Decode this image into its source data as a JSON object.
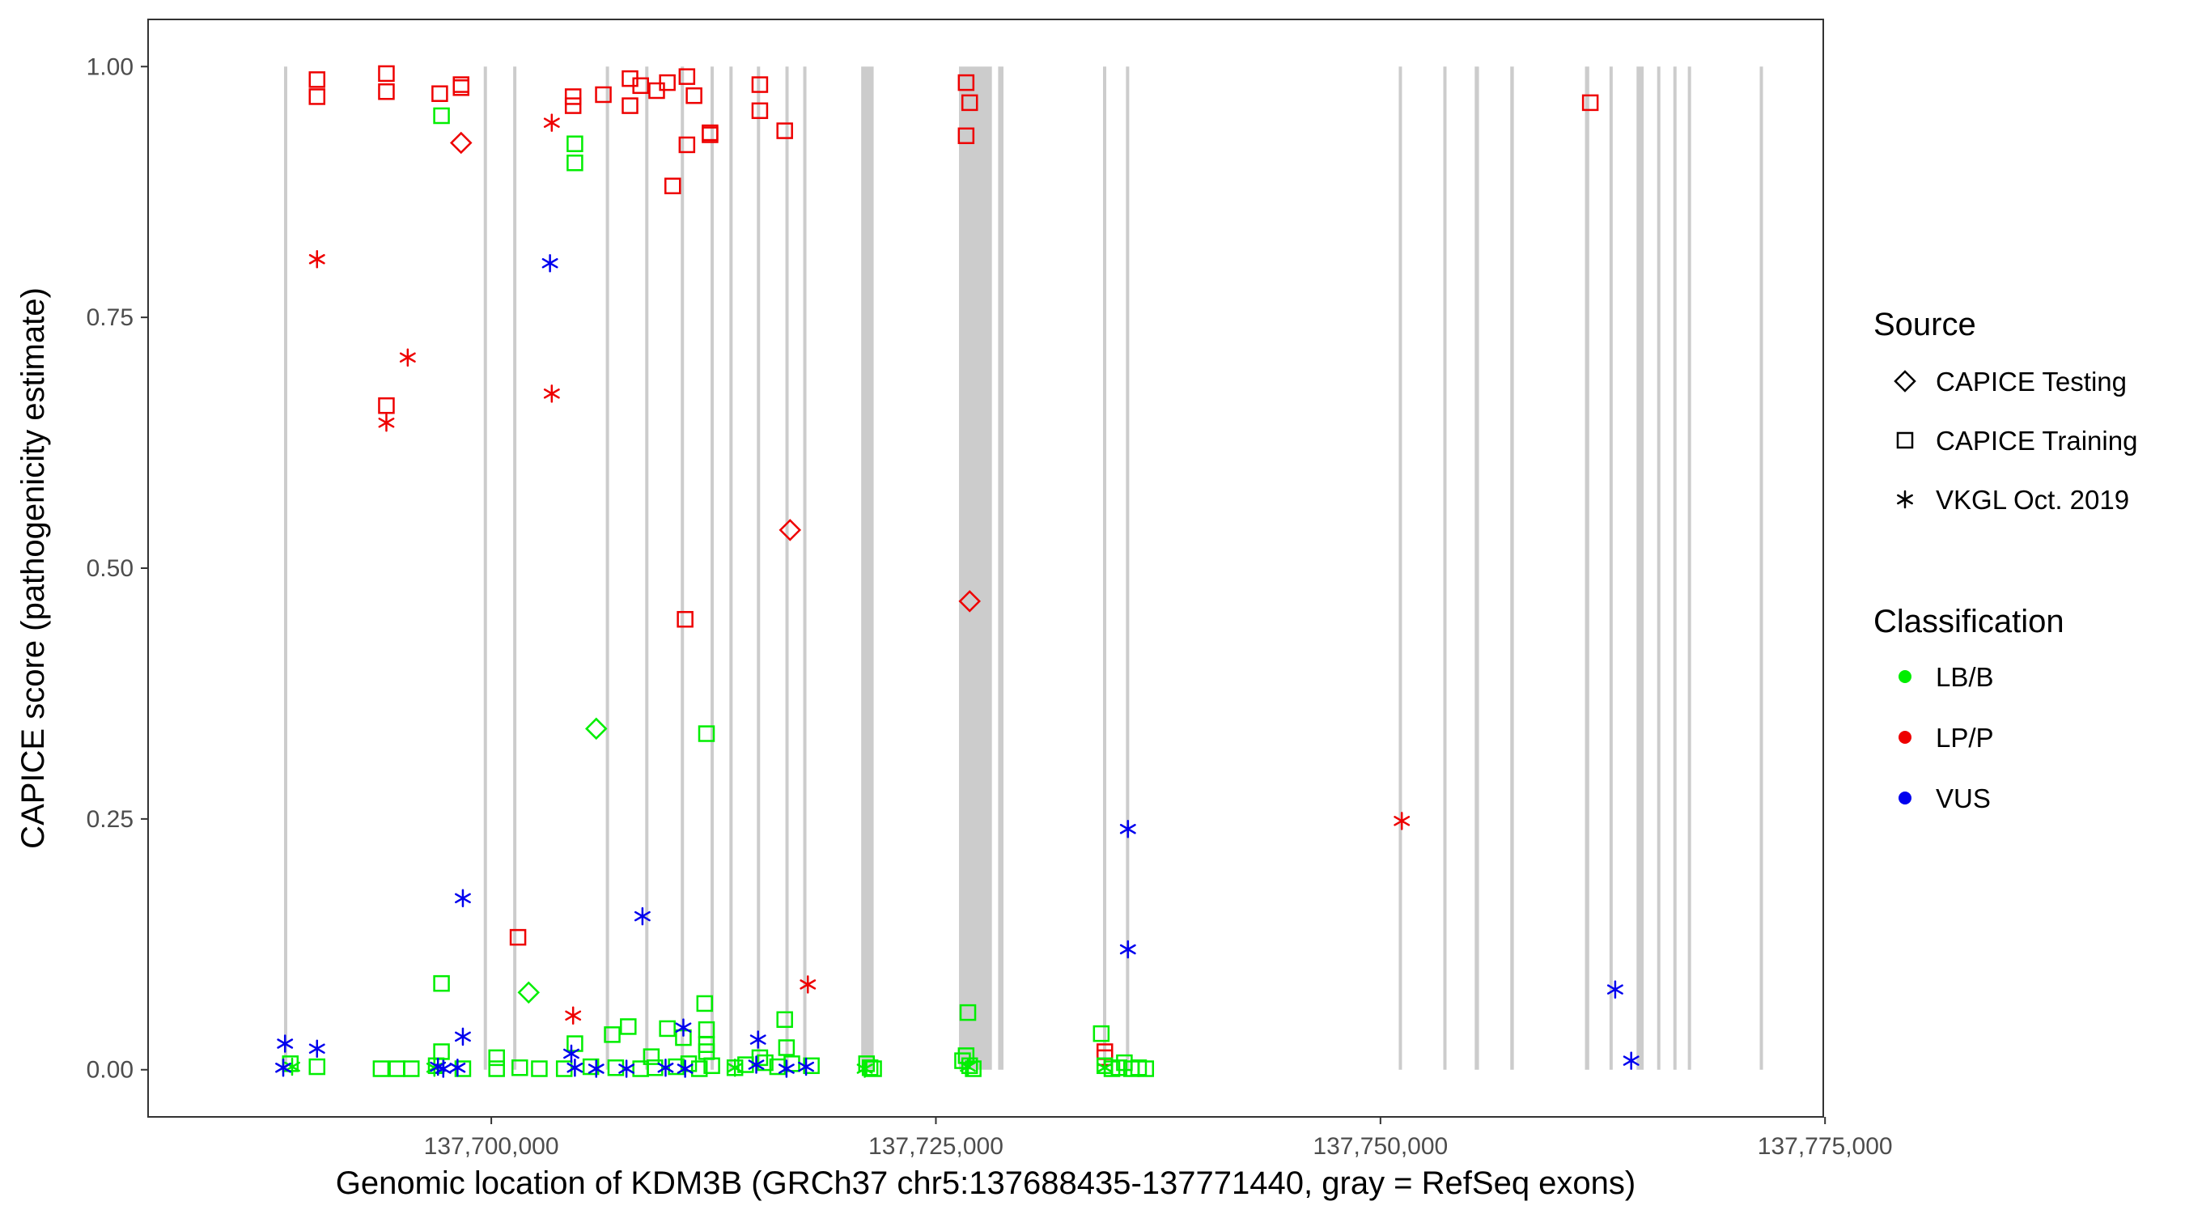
{
  "chart_data": {
    "type": "scatter",
    "title": "",
    "xlabel": "Genomic location of KDM3B (GRCh37 chr5:137688435-137771440, gray = RefSeq exons)",
    "ylabel": "CAPICE score (pathogenicity estimate)",
    "xlim": [
      137680700,
      137774900
    ],
    "ylim": [
      -0.047,
      1.047
    ],
    "x_ticks": [
      137700000,
      137725000,
      137750000,
      137775000
    ],
    "x_tick_labels": [
      "137,700,000",
      "137,725,000",
      "137,750,000",
      "137,775,000"
    ],
    "y_ticks": [
      0,
      0.25,
      0.5,
      0.75,
      1.0
    ],
    "y_tick_labels": [
      "0.00",
      "0.25",
      "0.50",
      "0.75",
      "1.00"
    ],
    "exons": [
      [
        137688410,
        137688460
      ],
      [
        137699640,
        137699690
      ],
      [
        137701300,
        137701340
      ],
      [
        137706500,
        137706560
      ],
      [
        137708700,
        137708790
      ],
      [
        137710700,
        137710790
      ],
      [
        137712400,
        137712440
      ],
      [
        137713450,
        137713510
      ],
      [
        137715000,
        137715050
      ],
      [
        137716600,
        137716660
      ],
      [
        137717600,
        137717660
      ],
      [
        137720800,
        137721500
      ],
      [
        137726300,
        137728150
      ],
      [
        137728500,
        137728800
      ],
      [
        137734400,
        137734580
      ],
      [
        137735700,
        137735860
      ],
      [
        137751100,
        137751140
      ],
      [
        137753600,
        137753650
      ],
      [
        137755300,
        137755540
      ],
      [
        137757300,
        137757500
      ],
      [
        137761500,
        137761740
      ],
      [
        137762900,
        137763040
      ],
      [
        137764400,
        137764800
      ],
      [
        137765600,
        137765700
      ],
      [
        137766500,
        137766620
      ],
      [
        137767300,
        137767450
      ],
      [
        137771400,
        137771440
      ]
    ],
    "legend": {
      "position": "right",
      "source_title": "Source",
      "source_items": [
        {
          "label": "CAPICE Testing",
          "shape": "diamond"
        },
        {
          "label": "CAPICE Training",
          "shape": "square"
        },
        {
          "label": "VKGL Oct. 2019",
          "shape": "asterisk"
        }
      ],
      "class_title": "Classification",
      "class_items": [
        {
          "label": "LB/B",
          "color": "#00ee00"
        },
        {
          "label": "LP/P",
          "color": "#ee0000"
        },
        {
          "label": "VUS",
          "color": "#0000ee"
        }
      ]
    },
    "colors": {
      "LB/B": "#00ee00",
      "LP/P": "#ee0000",
      "VUS": "#0000ee"
    },
    "series": [
      {
        "name": "CAPICE Training / LP/P",
        "source": "CAPICE Training",
        "class": "LP/P",
        "points": [
          [
            137690200,
            0.987
          ],
          [
            137690200,
            0.97
          ],
          [
            137694100,
            0.993
          ],
          [
            137694100,
            0.975
          ],
          [
            137697100,
            0.973
          ],
          [
            137698300,
            0.982
          ],
          [
            137698300,
            0.979
          ],
          [
            137694100,
            0.662
          ],
          [
            137701500,
            0.132
          ],
          [
            137704600,
            0.97
          ],
          [
            137704600,
            0.961
          ],
          [
            137706300,
            0.972
          ],
          [
            137707800,
            0.988
          ],
          [
            137708400,
            0.981
          ],
          [
            137707800,
            0.961
          ],
          [
            137709300,
            0.976
          ],
          [
            137709900,
            0.984
          ],
          [
            137710200,
            0.881
          ],
          [
            137711000,
            0.99
          ],
          [
            137711400,
            0.971
          ],
          [
            137711000,
            0.922
          ],
          [
            137712300,
            0.934
          ],
          [
            137712300,
            0.932
          ],
          [
            137715100,
            0.982
          ],
          [
            137715100,
            0.956
          ],
          [
            137716500,
            0.936
          ],
          [
            137710900,
            0.449
          ],
          [
            137726700,
            0.984
          ],
          [
            137726900,
            0.964
          ],
          [
            137726700,
            0.931
          ],
          [
            137734500,
            0.018
          ],
          [
            137734500,
            0.012
          ],
          [
            137761800,
            0.964
          ]
        ]
      },
      {
        "name": "CAPICE Testing / LP/P",
        "source": "CAPICE Testing",
        "class": "LP/P",
        "points": [
          [
            137698300,
            0.924
          ],
          [
            137716800,
            0.538
          ],
          [
            137726900,
            0.467
          ]
        ]
      },
      {
        "name": "VKGL / LP/P",
        "source": "VKGL Oct. 2019",
        "class": "LP/P",
        "points": [
          [
            137690200,
            0.808
          ],
          [
            137694100,
            0.645
          ],
          [
            137695300,
            0.71
          ],
          [
            137703400,
            0.944
          ],
          [
            137703400,
            0.674
          ],
          [
            137704600,
            0.054
          ],
          [
            137717800,
            0.085
          ],
          [
            137751200,
            0.248
          ]
        ]
      },
      {
        "name": "CAPICE Training / LB/B",
        "source": "CAPICE Training",
        "class": "LB/B",
        "points": [
          [
            137697200,
            0.951
          ],
          [
            137704700,
            0.923
          ],
          [
            137704700,
            0.904
          ],
          [
            137712100,
            0.335
          ],
          [
            137697200,
            0.086
          ],
          [
            137697200,
            0.018
          ],
          [
            137712000,
            0.066
          ],
          [
            137716500,
            0.05
          ],
          [
            137726800,
            0.057
          ],
          [
            137734300,
            0.036
          ],
          [
            137700300,
            0.012
          ],
          [
            137704700,
            0.026
          ],
          [
            137706800,
            0.035
          ],
          [
            137707700,
            0.043
          ],
          [
            137709000,
            0.013
          ],
          [
            137709900,
            0.041
          ],
          [
            137710800,
            0.032
          ],
          [
            137712100,
            0.04
          ],
          [
            137712100,
            0.025
          ],
          [
            137712100,
            0.018
          ],
          [
            137715100,
            0.012
          ],
          [
            137716600,
            0.022
          ],
          [
            137688700,
            0.006
          ],
          [
            137690200,
            0.003
          ],
          [
            137693800,
            0.001
          ],
          [
            137694700,
            0.001
          ],
          [
            137695500,
            0.001
          ],
          [
            137696900,
            0.004
          ],
          [
            137698400,
            0.001
          ],
          [
            137700300,
            0.001
          ],
          [
            137701600,
            0.002
          ],
          [
            137702700,
            0.001
          ],
          [
            137704100,
            0.001
          ],
          [
            137705600,
            0.003
          ],
          [
            137707000,
            0.002
          ],
          [
            137708400,
            0.001
          ],
          [
            137709200,
            0.002
          ],
          [
            137710400,
            0.003
          ],
          [
            137711100,
            0.006
          ],
          [
            137711700,
            0.001
          ],
          [
            137712400,
            0.004
          ],
          [
            137713700,
            0.002
          ],
          [
            137714300,
            0.005
          ],
          [
            137715400,
            0.007
          ],
          [
            137716100,
            0.003
          ],
          [
            137716900,
            0.006
          ],
          [
            137718000,
            0.004
          ],
          [
            137721100,
            0.006
          ],
          [
            137721300,
            0.002
          ],
          [
            137721500,
            0.001
          ],
          [
            137726500,
            0.009
          ],
          [
            137726700,
            0.014
          ],
          [
            137726900,
            0.004
          ],
          [
            137727100,
            0.001
          ],
          [
            137734500,
            0.004
          ],
          [
            137734900,
            0.001
          ],
          [
            137735300,
            0.002
          ],
          [
            137735600,
            0.007
          ],
          [
            137736000,
            0.001
          ],
          [
            137736400,
            0.002
          ],
          [
            137736800,
            0.001
          ]
        ]
      },
      {
        "name": "CAPICE Testing / LB/B",
        "source": "CAPICE Testing",
        "class": "LB/B",
        "points": [
          [
            137705900,
            0.34
          ],
          [
            137702100,
            0.077
          ]
        ]
      },
      {
        "name": "VKGL / LB/B",
        "source": "VKGL Oct. 2019",
        "class": "LB/B",
        "points": [
          [
            137688800,
            0.003
          ],
          [
            137696800,
            0.002
          ],
          [
            137713700,
            0.002
          ],
          [
            137721000,
            0.001
          ],
          [
            137726800,
            0.003
          ],
          [
            137734500,
            0.002
          ]
        ]
      },
      {
        "name": "VKGL / VUS",
        "source": "VKGL Oct. 2019",
        "class": "VUS",
        "points": [
          [
            137688400,
            0.026
          ],
          [
            137690200,
            0.021
          ],
          [
            137698400,
            0.171
          ],
          [
            137698400,
            0.033
          ],
          [
            137703300,
            0.804
          ],
          [
            137708500,
            0.153
          ],
          [
            137704500,
            0.016
          ],
          [
            137710800,
            0.042
          ],
          [
            137715000,
            0.03
          ],
          [
            137735800,
            0.24
          ],
          [
            137735800,
            0.12
          ],
          [
            137763200,
            0.08
          ],
          [
            137764100,
            0.009
          ],
          [
            137688300,
            0.002
          ],
          [
            137697000,
            0.003
          ],
          [
            137697300,
            0.001
          ],
          [
            137698100,
            0.002
          ],
          [
            137704700,
            0.002
          ],
          [
            137705900,
            0.001
          ],
          [
            137707600,
            0.001
          ],
          [
            137709800,
            0.002
          ],
          [
            137710900,
            0.001
          ],
          [
            137714900,
            0.005
          ],
          [
            137716600,
            0.001
          ],
          [
            137717700,
            0.003
          ]
        ]
      }
    ]
  }
}
